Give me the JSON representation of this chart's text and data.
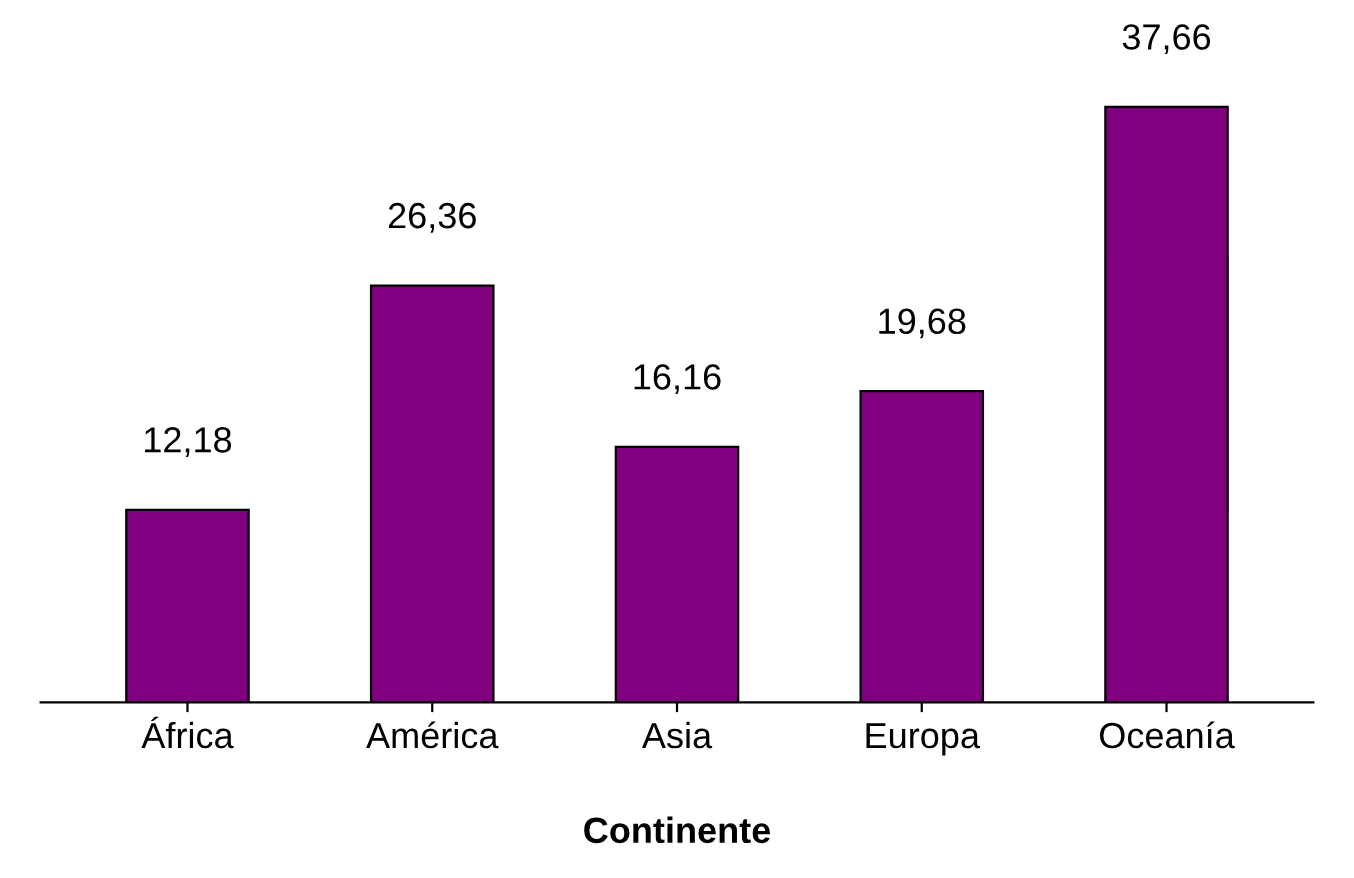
{
  "chart_data": {
    "type": "bar",
    "xlabel": "Continente",
    "categories": [
      "África",
      "América",
      "Asia",
      "Europa",
      "Oceanía"
    ],
    "values": [
      12.18,
      26.36,
      16.16,
      19.68,
      37.66
    ],
    "value_labels": [
      "12,18",
      "26,36",
      "16,16",
      "19,68",
      "37,66"
    ],
    "color": "#800080",
    "grid": false,
    "legend": false
  }
}
